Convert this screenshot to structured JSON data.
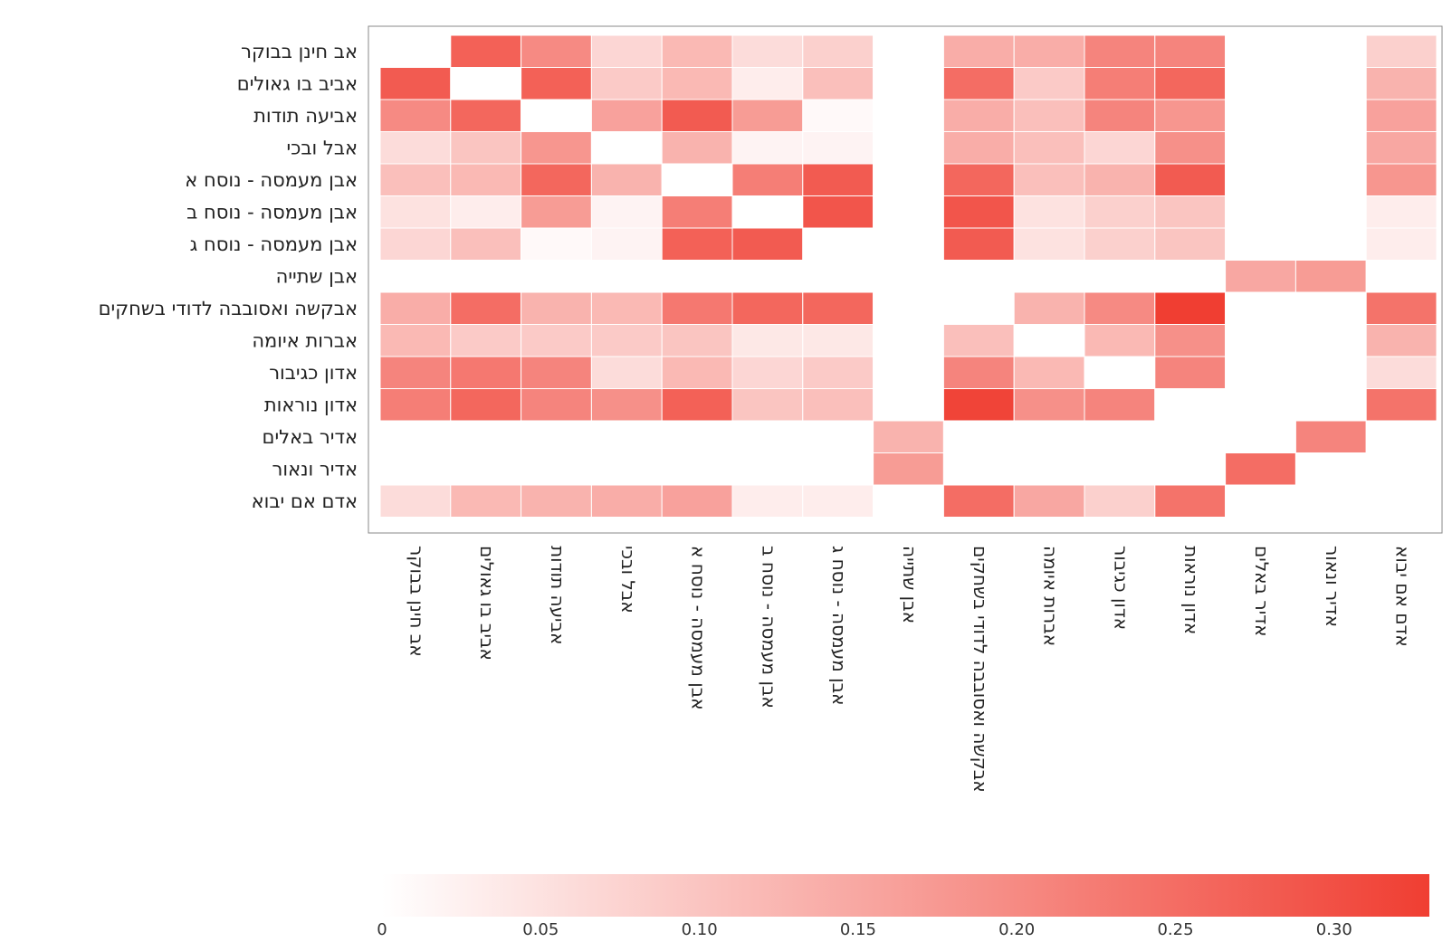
{
  "chart_data": {
    "type": "heatmap",
    "title": "",
    "xlabel": "",
    "ylabel": "",
    "rows": [
      "אב חינן בבוקר",
      "אביב בו גאולים",
      "אביעה תודות",
      "אבל ובכי",
      "אבן מעמסה - נוסח א",
      "אבן מעמסה - נוסח ב",
      "אבן מעמסה - נוסח ג",
      "אבן שתייה",
      "אבקשה ואסובבה לדודי בשחקים",
      "אברות איומה",
      "אדון כגיבור",
      "אדון נוראות",
      "אדיר באלים",
      "אדיר ונאור",
      "אדם אם יבוא"
    ],
    "columns": [
      "אב חינן בבוקר",
      "אביב בו גאולים",
      "אביעה תודות",
      "אבל ובכי",
      "אבן מעמסה - נוסח א",
      "אבן מעמסה - נוסח ב",
      "אבן מעמסה - נוסח ג",
      "אבן שתייה",
      "אבקשה ואסובבה לדודי בשחקים",
      "אברות איומה",
      "אדון כגיבור",
      "אדון נוראות",
      "אדיר באלים",
      "אדיר ונאור",
      "אדם אם יבוא"
    ],
    "values": [
      [
        0,
        0.27,
        0.2,
        0.07,
        0.12,
        0.06,
        0.08,
        0,
        0.14,
        0.14,
        0.21,
        0.21,
        0,
        0,
        0.08
      ],
      [
        0.28,
        0,
        0.27,
        0.09,
        0.12,
        0.03,
        0.11,
        0,
        0.25,
        0.09,
        0.22,
        0.26,
        0,
        0,
        0.13
      ],
      [
        0.2,
        0.26,
        0,
        0.16,
        0.28,
        0.17,
        0.01,
        0,
        0.14,
        0.11,
        0.21,
        0.18,
        0,
        0,
        0.16
      ],
      [
        0.06,
        0.1,
        0.18,
        0,
        0.13,
        0.02,
        0.02,
        0,
        0.14,
        0.11,
        0.07,
        0.19,
        0,
        0,
        0.15
      ],
      [
        0.11,
        0.12,
        0.26,
        0.13,
        0,
        0.22,
        0.28,
        0,
        0.26,
        0.11,
        0.13,
        0.28,
        0,
        0,
        0.18
      ],
      [
        0.05,
        0.03,
        0.17,
        0.02,
        0.22,
        0,
        0.29,
        0,
        0.29,
        0.05,
        0.08,
        0.1,
        0,
        0,
        0.03
      ],
      [
        0.07,
        0.11,
        0.01,
        0.02,
        0.27,
        0.28,
        0,
        0,
        0.28,
        0.05,
        0.08,
        0.1,
        0,
        0,
        0.03
      ],
      [
        0,
        0,
        0,
        0,
        0,
        0,
        0,
        0,
        0,
        0,
        0,
        0,
        0.15,
        0.17,
        0
      ],
      [
        0.14,
        0.25,
        0.13,
        0.12,
        0.23,
        0.26,
        0.26,
        0,
        0,
        0.13,
        0.2,
        0.33,
        0,
        0,
        0.24
      ],
      [
        0.12,
        0.09,
        0.09,
        0.09,
        0.1,
        0.04,
        0.04,
        0,
        0.11,
        0,
        0.12,
        0.19,
        0,
        0,
        0.13
      ],
      [
        0.21,
        0.23,
        0.21,
        0.06,
        0.12,
        0.07,
        0.09,
        0,
        0.21,
        0.12,
        0,
        0.21,
        0,
        0,
        0.06
      ],
      [
        0.22,
        0.26,
        0.21,
        0.19,
        0.27,
        0.1,
        0.11,
        0,
        0.32,
        0.19,
        0.21,
        0,
        0,
        0,
        0.24
      ],
      [
        0,
        0,
        0,
        0,
        0,
        0,
        0,
        0.13,
        0,
        0,
        0,
        0,
        0,
        0.21,
        0
      ],
      [
        0,
        0,
        0,
        0,
        0,
        0,
        0,
        0.17,
        0,
        0,
        0,
        0,
        0.25,
        0,
        0
      ],
      [
        0.06,
        0.12,
        0.13,
        0.14,
        0.16,
        0.03,
        0.03,
        0,
        0.25,
        0.15,
        0.08,
        0.24,
        0,
        0,
        0
      ]
    ],
    "colorbar": {
      "min": 0,
      "max": 0.33,
      "ticks": [
        0,
        0.05,
        0.1,
        0.15,
        0.2,
        0.25,
        0.3
      ],
      "tick_labels": [
        "0",
        "0.05",
        "0.10",
        "0.15",
        "0.20",
        "0.25",
        "0.30"
      ],
      "color_low": "#ffffff",
      "color_high": "#f03e32"
    },
    "legend_position": "bottom"
  }
}
